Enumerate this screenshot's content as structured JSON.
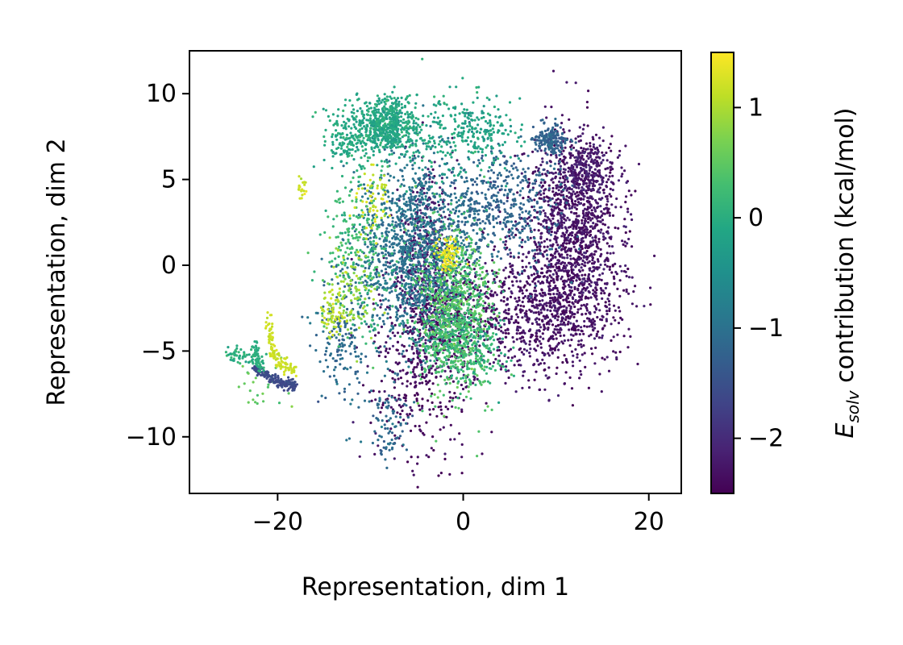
{
  "chart_data": {
    "type": "scatter",
    "xlabel": "Representation, dim 1",
    "ylabel": "Representation, dim 2",
    "xlim": [
      -29.5,
      23.5
    ],
    "ylim": [
      -13.3,
      12.5
    ],
    "xticks": [
      -20,
      0,
      20
    ],
    "xtick_labels": [
      "−20",
      "0",
      "20"
    ],
    "yticks": [
      -10,
      -5,
      0,
      5,
      10
    ],
    "ytick_labels": [
      "−10",
      "−5",
      "0",
      "5",
      "10"
    ],
    "colorbar": {
      "label_main": "E",
      "label_sub": "solv",
      "label_rest": " contribution (kcal/mol)",
      "colormap": "viridis",
      "range": [
        -2.5,
        1.5
      ],
      "ticks": [
        -2,
        -1,
        0,
        1
      ],
      "tick_labels": [
        "−2",
        "−1",
        "0",
        "1"
      ]
    },
    "grid": false,
    "clusters": [
      {
        "x": 12,
        "y": 3,
        "sx": 2.6,
        "sy": 2.6,
        "n": 900,
        "value": -2.3
      },
      {
        "x": 11,
        "y": -1.5,
        "sx": 3.2,
        "sy": 2.3,
        "n": 700,
        "value": -2.3
      },
      {
        "x": 6,
        "y": -3,
        "sx": 4,
        "sy": 1.8,
        "n": 500,
        "value": -2.3
      },
      {
        "x": 13,
        "y": 5.5,
        "sx": 1.5,
        "sy": 0.8,
        "n": 250,
        "value": -2.2
      },
      {
        "x": -5,
        "y": -7,
        "sx": 2.8,
        "sy": 2.5,
        "n": 260,
        "value": -2.4
      },
      {
        "x": -3,
        "y": -3,
        "sx": 3,
        "sy": 2,
        "n": 500,
        "value": -2.3
      },
      {
        "x": -4,
        "y": 1,
        "sx": 1.5,
        "sy": 2.5,
        "n": 350,
        "value": -2.2
      },
      {
        "x": -5,
        "y": 1,
        "sx": 3,
        "sy": 2.8,
        "n": 1300,
        "value": -1.0
      },
      {
        "x": 4,
        "y": 3.5,
        "sx": 3,
        "sy": 1.8,
        "n": 450,
        "value": -1.2
      },
      {
        "x": 9.5,
        "y": 7.3,
        "sx": 0.8,
        "sy": 0.4,
        "n": 180,
        "value": -1.2
      },
      {
        "x": -13,
        "y": -4,
        "sx": 1.5,
        "sy": 2,
        "n": 180,
        "value": -1.1
      },
      {
        "x": -8,
        "y": -9.5,
        "sx": 1,
        "sy": 1.2,
        "n": 80,
        "value": -1.1
      },
      {
        "x": -1,
        "y": -2.5,
        "sx": 2,
        "sy": 2.5,
        "n": 750,
        "value": 0.4
      },
      {
        "x": -8,
        "y": 8.2,
        "sx": 1.5,
        "sy": 0.8,
        "n": 500,
        "value": -0.1
      },
      {
        "x": -12,
        "y": 7.5,
        "sx": 1.5,
        "sy": 1,
        "n": 200,
        "value": -0.1
      },
      {
        "x": -2,
        "y": 7.5,
        "sx": 4,
        "sy": 1.3,
        "n": 250,
        "value": -0.1
      },
      {
        "x": 2,
        "y": 8,
        "sx": 1.5,
        "sy": 0.8,
        "n": 120,
        "value": -0.2
      },
      {
        "x": -11,
        "y": 1,
        "sx": 2,
        "sy": 2.5,
        "n": 250,
        "value": 0.2
      },
      {
        "x": -1,
        "y": -4.5,
        "sx": 2,
        "sy": 0.9,
        "n": 200,
        "value": 0.2
      },
      {
        "x": -12,
        "y": -1.5,
        "sx": 1.5,
        "sy": 1.5,
        "n": 100,
        "value": 0.9
      },
      {
        "x": -14,
        "y": -3,
        "sx": 0.6,
        "sy": 0.8,
        "n": 60,
        "value": 1.1
      },
      {
        "x": -1.5,
        "y": 0.6,
        "sx": 0.8,
        "sy": 0.5,
        "n": 80,
        "value": 1.4
      },
      {
        "x": -10,
        "y": 4,
        "sx": 1,
        "sy": 1,
        "n": 60,
        "value": 1.2
      },
      {
        "x": -17.5,
        "y": 4.5,
        "sx": 0.3,
        "sy": 0.3,
        "n": 20,
        "value": 1.2
      },
      {
        "x": 2,
        "y": -5,
        "sx": 1.5,
        "sy": 1.2,
        "n": 100,
        "value": 0.1
      },
      {
        "x": -24,
        "y": -5.3,
        "sx": 1.2,
        "sy": 0.25,
        "n": 50,
        "value": 0.0
      },
      {
        "x": -21.5,
        "y": -6.8,
        "sx": 1.1,
        "sy": 0.8,
        "n": 30,
        "value": 0.5
      }
    ],
    "curves": [
      {
        "x": [
          -22.5,
          -21,
          -19.5,
          -18
        ],
        "y": [
          -6.0,
          -6.5,
          -6.9,
          -7.0
        ],
        "n": 160,
        "spread": 0.15,
        "value": -1.6
      },
      {
        "x": [
          -21,
          -20.5,
          -19.5,
          -18
        ],
        "y": [
          -3.0,
          -5.0,
          -5.8,
          -6.1
        ],
        "n": 110,
        "spread": 0.2,
        "value": 1.2
      },
      {
        "x": [
          -22.5,
          -22.2,
          -21.8
        ],
        "y": [
          -4.7,
          -5.3,
          -6.0
        ],
        "n": 60,
        "spread": 0.2,
        "value": 0.0
      }
    ]
  }
}
